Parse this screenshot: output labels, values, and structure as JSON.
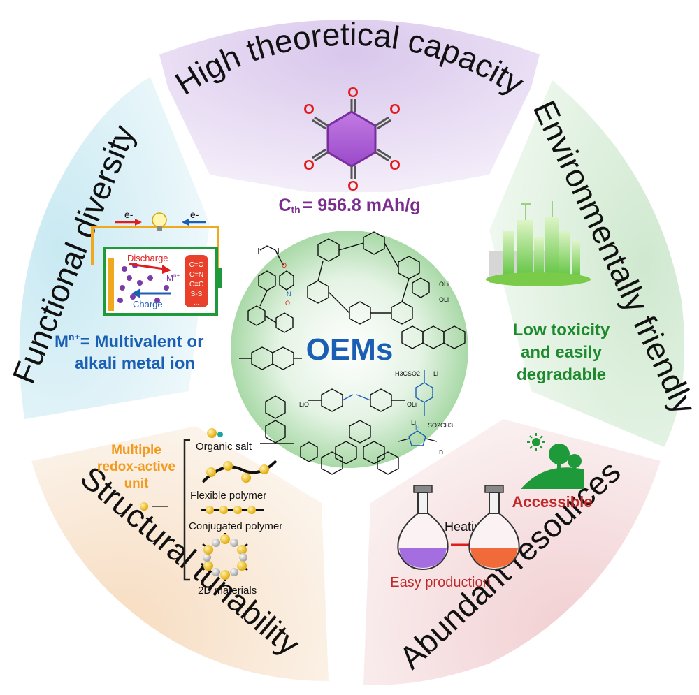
{
  "center": {
    "label": "OEMs"
  },
  "segments": {
    "capacity": {
      "title": "High theoretical capacity",
      "formula_prefix": "C",
      "formula_sub": "th",
      "formula_value": "= 956.8 mAh/g",
      "color": "#7b2d8e"
    },
    "environment": {
      "title": "Environmentally friendly",
      "caption_line1": "Low toxicity",
      "caption_line2": "and easily",
      "caption_line3": "degradable",
      "color": "#1e8a2e"
    },
    "resources": {
      "title": "Abundant resources",
      "accessible": "Accessible",
      "heating": "Heating",
      "production": "Easy production",
      "color": "#c0282a"
    },
    "structural": {
      "title": "Structural tunability",
      "caption_line1": "Multiple",
      "caption_line2": "redox-active",
      "caption_line3": "unit",
      "item1": "Organic salt",
      "item2": "Flexible polymer",
      "item3": "Conjugated polymer",
      "item4": "2D materials",
      "color": "#f39a1e"
    },
    "functional": {
      "title": "Functional diversity",
      "electron_left": "e-",
      "electron_right": "e-",
      "discharge": "Discharge",
      "charge": "Charge",
      "ion": "M",
      "ion_sup": "n+",
      "groups": [
        "C=O",
        "C=N",
        "C≡C",
        "S-S",
        "..."
      ],
      "ion_label_prefix": "M",
      "ion_label_sup": "n+",
      "ion_label_rest": "= Multivalent or",
      "ion_label_line2": "alkali metal ion",
      "color": "#1b5fb5"
    }
  },
  "molecules": {
    "oxide_o": "O",
    "oli1": "OLi",
    "oli2": "OLi",
    "lio": "LiO",
    "oli3": "OLi",
    "n_label": "N",
    "n_sub": "n",
    "h3cso2": "H3CSO2",
    "li": "Li",
    "so2ch3": "SO2CH3",
    "nh": "H",
    "o_dot": "O·"
  }
}
